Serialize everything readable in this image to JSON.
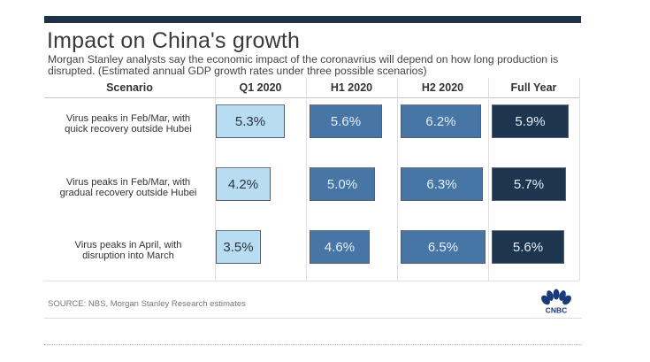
{
  "title": "Impact on China's growth",
  "subtitle": "Morgan Stanley analysts say the economic impact of the coronavrius will depend on how long production is disrupted. (Estimated annual GDP growth rates under three possible scenarios)",
  "source": "SOURCE: NBS, Morgan Stanley Research estimates",
  "logo_text": "CNBC",
  "colors": {
    "topbar": "#1f3347",
    "q1": "#b8dcf1",
    "h1": "#4775a6",
    "h2": "#4775a6",
    "full_year": "#1e3550",
    "q1_text": "#2b3340",
    "dark_text": "#e4eef8"
  },
  "chart_data": {
    "type": "table",
    "title": "Impact on China's growth",
    "subtitle": "Morgan Stanley analysts say the economic impact of the coronavrius will depend on how long production is disrupted. (Estimated annual GDP growth rates under three possible scenarios)",
    "row_header": "Scenario",
    "columns": [
      "Q1 2020",
      "H1 2020",
      "H2 2020",
      "Full Year"
    ],
    "rows": [
      {
        "scenario_line1": "Virus peaks in Feb/Mar, with",
        "scenario_line2": "quick recovery outside Hubei",
        "values": [
          5.3,
          5.6,
          6.2,
          5.9
        ],
        "labels": [
          "5.3%",
          "5.6%",
          "6.2%",
          "5.9%"
        ]
      },
      {
        "scenario_line1": "Virus peaks in Feb/Mar, with",
        "scenario_line2": "gradual recovery outside Hubei",
        "values": [
          4.2,
          5.0,
          6.3,
          5.7
        ],
        "labels": [
          "4.2%",
          "5.0%",
          "6.3%",
          "5.7%"
        ]
      },
      {
        "scenario_line1": "Virus peaks in April, with",
        "scenario_line2": "disruption into March",
        "values": [
          3.5,
          4.6,
          6.5,
          5.6
        ],
        "labels": [
          "3.5%",
          "4.6%",
          "6.5%",
          "5.6%"
        ]
      }
    ],
    "unit": "%",
    "source": "SOURCE: NBS, Morgan Stanley Research estimates"
  }
}
